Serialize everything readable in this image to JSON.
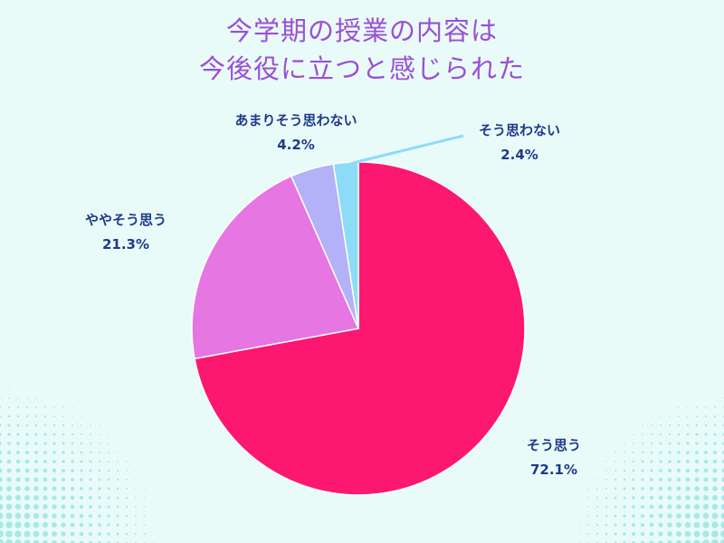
{
  "title_lines": [
    "今学期の授業の内容は",
    "今後役に立つと感じられた"
  ],
  "colors": {
    "background": "#e9fbf9",
    "title": "#9b4fd6",
    "label": "#1f3a8a",
    "dots": "#8fe3df"
  },
  "chart_data": {
    "type": "pie",
    "title": "今学期の授業の内容は 今後役に立つと感じられた",
    "slices": [
      {
        "label": "そう思う",
        "value": 72.1,
        "pct_text": "72.1%",
        "color": "#fc1770"
      },
      {
        "label": "ややそう思う",
        "value": 21.3,
        "pct_text": "21.3%",
        "color": "#e676e1"
      },
      {
        "label": "あまりそう思わない",
        "value": 4.2,
        "pct_text": "4.2%",
        "color": "#b3b1f7"
      },
      {
        "label": "そう思わない",
        "value": 2.4,
        "pct_text": "2.4%",
        "color": "#8cdcf8"
      }
    ],
    "start_angle": "12 o'clock",
    "direction": "clockwise",
    "legend": "none"
  }
}
